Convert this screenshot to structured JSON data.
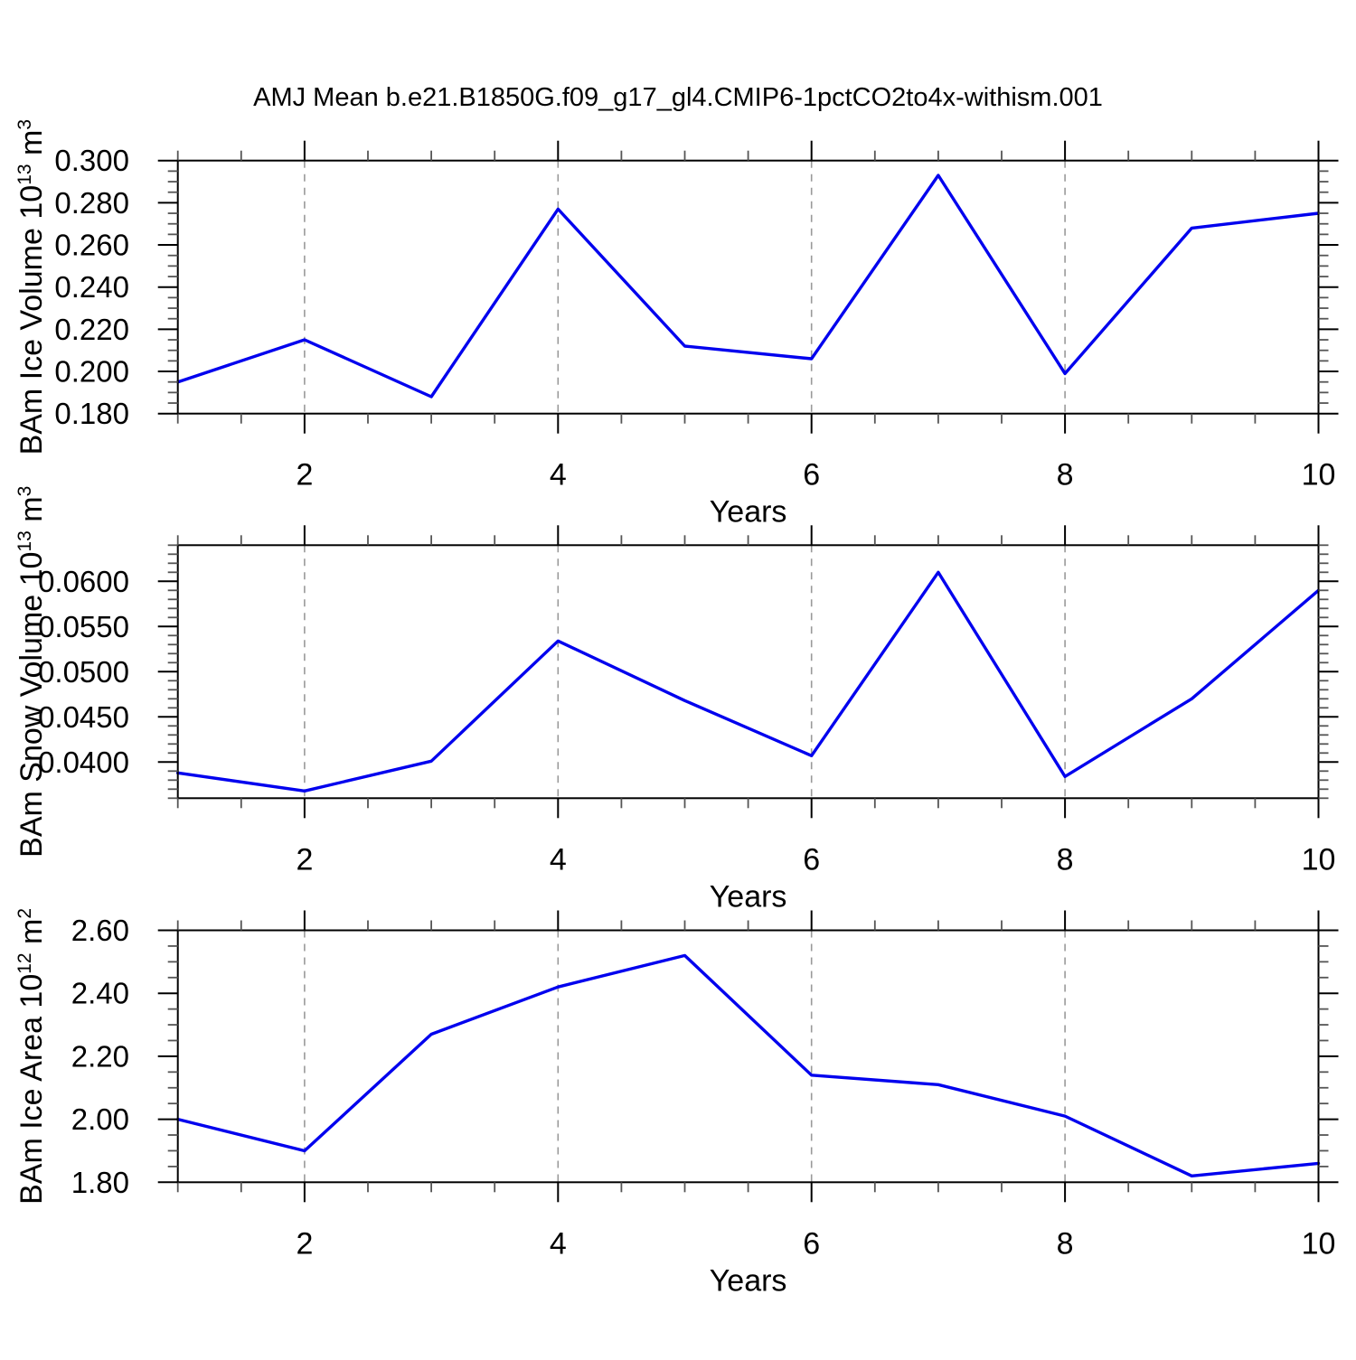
{
  "title": "AMJ Mean b.e21.B1850G.f09_g17_gl4.CMIP6-1pctCO2to4x-withism.001",
  "colors": {
    "line": "#0000EE",
    "grid": "#999999",
    "frame": "#000000",
    "minor_tick": "#555555"
  },
  "chart_data": [
    {
      "type": "line",
      "name": "ice-volume",
      "title": "",
      "x": [
        1,
        2,
        3,
        4,
        5,
        6,
        7,
        8,
        9,
        10
      ],
      "values": [
        0.195,
        0.215,
        0.188,
        0.277,
        0.212,
        0.206,
        0.293,
        0.199,
        0.268,
        0.275
      ],
      "xlabel": "Years",
      "ylabel": "BAm Ice Volume 10¹³ m³",
      "ylabel_parts": [
        {
          "text": "BAm Ice Volume 10"
        },
        {
          "text": "13",
          "sup": true
        },
        {
          "text": " m"
        },
        {
          "text": "3",
          "sup": true
        }
      ],
      "xlim": [
        1,
        10
      ],
      "ylim": [
        0.18,
        0.3
      ],
      "xtick_labels": [
        2,
        4,
        6,
        8,
        10
      ],
      "xtick_minor_step": 0.5,
      "ytick_major": 0.02,
      "ytick_major_start": 0.18,
      "ytick_minor": 0.005,
      "ytick_decimals": 3,
      "grid_x": [
        2,
        4,
        6,
        8
      ],
      "grid": "vertical-dashed",
      "legend": "none"
    },
    {
      "type": "line",
      "name": "snow-volume",
      "title": "",
      "x": [
        1,
        2,
        3,
        4,
        5,
        6,
        7,
        8,
        9,
        10
      ],
      "values": [
        0.0388,
        0.0368,
        0.0401,
        0.0534,
        0.0468,
        0.0407,
        0.061,
        0.0384,
        0.047,
        0.059
      ],
      "xlabel": "Years",
      "ylabel": "BAm Snow Volume 10¹³ m³",
      "ylabel_parts": [
        {
          "text": "BAm Snow Volume 10"
        },
        {
          "text": "13",
          "sup": true
        },
        {
          "text": " m"
        },
        {
          "text": "3",
          "sup": true
        }
      ],
      "xlim": [
        1,
        10
      ],
      "ylim": [
        0.036,
        0.064
      ],
      "xtick_labels": [
        2,
        4,
        6,
        8,
        10
      ],
      "xtick_minor_step": 0.5,
      "ytick_major": 0.005,
      "ytick_major_start": 0.04,
      "ytick_minor": 0.001,
      "ytick_decimals": 4,
      "grid_x": [
        2,
        4,
        6,
        8
      ],
      "grid": "vertical-dashed",
      "legend": "none"
    },
    {
      "type": "line",
      "name": "ice-area",
      "title": "",
      "x": [
        1,
        2,
        3,
        4,
        5,
        6,
        7,
        8,
        9,
        10
      ],
      "values": [
        2.0,
        1.9,
        2.27,
        2.42,
        2.52,
        2.14,
        2.11,
        2.01,
        1.82,
        1.86
      ],
      "xlabel": "Years",
      "ylabel": "BAm Ice Area 10¹² m²",
      "ylabel_parts": [
        {
          "text": "BAm Ice Area 10"
        },
        {
          "text": "12",
          "sup": true
        },
        {
          "text": " m"
        },
        {
          "text": "2",
          "sup": true
        }
      ],
      "xlim": [
        1,
        10
      ],
      "ylim": [
        1.8,
        2.6
      ],
      "xtick_labels": [
        2,
        4,
        6,
        8,
        10
      ],
      "xtick_minor_step": 0.5,
      "ytick_major": 0.2,
      "ytick_major_start": 1.8,
      "ytick_minor": 0.05,
      "ytick_decimals": 2,
      "grid_x": [
        2,
        4,
        6,
        8
      ],
      "grid": "vertical-dashed",
      "legend": "none"
    }
  ]
}
